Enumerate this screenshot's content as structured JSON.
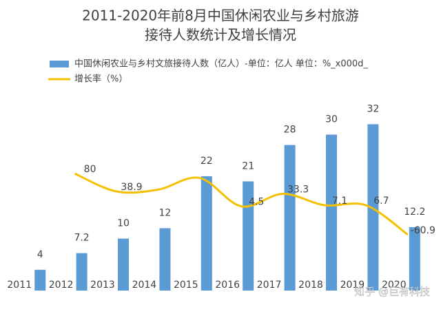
{
  "chart_data": {
    "type": "bar-line",
    "title": [
      "2011-2020年前8月中国休闲农业与乡村旅游",
      "接待人数统计及增长情况"
    ],
    "categories": [
      "2011",
      "2012",
      "2013",
      "2014",
      "2015",
      "2016",
      "2017",
      "2018",
      "2019",
      "2020"
    ],
    "series": [
      {
        "name": "中国休闲农业与乡村文旅接待人数（亿人）-单位：亿人 单位：%_x000d_",
        "type": "bar",
        "color": "#5b9bd5",
        "values": [
          4,
          7.2,
          10,
          12,
          22,
          21,
          28,
          30,
          32,
          12.2
        ]
      },
      {
        "name": "增长率（%）",
        "type": "line",
        "axis": "y2",
        "color": "#f5c000",
        "values": [
          null,
          80,
          38.9,
          43,
          70,
          4.5,
          33.3,
          7.1,
          6.7,
          -60.9
        ],
        "value_labels": [
          null,
          "80",
          "38.9",
          null,
          null,
          "4.5",
          "33.3",
          "7.1",
          "6.7",
          "-60.9"
        ]
      }
    ],
    "ylim": [
      0,
      40
    ],
    "y2lim": [
      -190,
      290
    ],
    "legend": "top-left",
    "watermark": "知乎 @巨有科技"
  }
}
